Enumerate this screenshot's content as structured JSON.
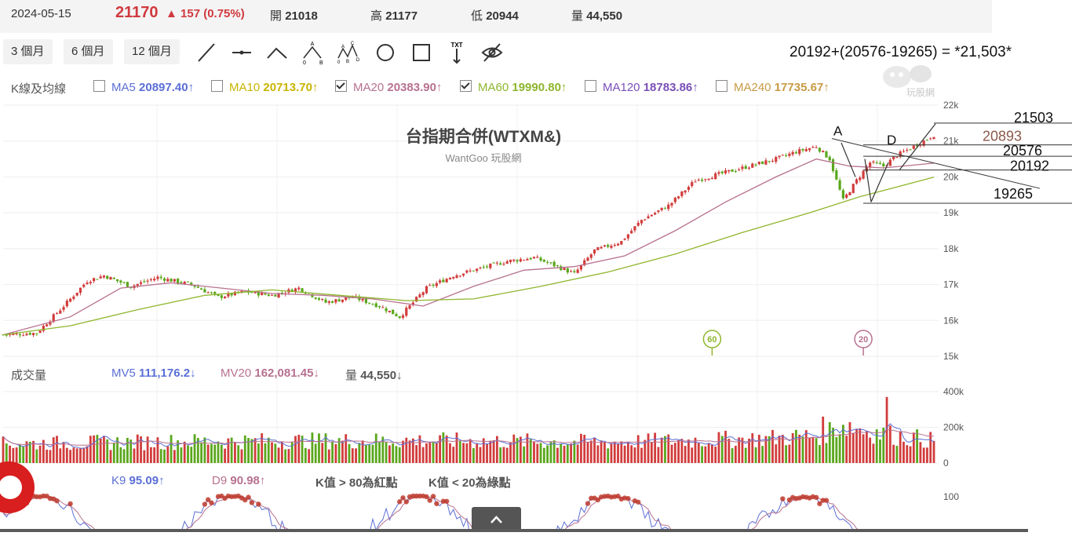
{
  "quote": {
    "date": "2024-05-15",
    "last": "21170",
    "change": "157 (0.75%)",
    "open_label": "開",
    "open": "21018",
    "high_label": "高",
    "high": "21177",
    "low_label": "低",
    "low": "20944",
    "vol_label": "量",
    "vol": "44,550"
  },
  "ranges": [
    "3 個月",
    "6 個月",
    "12 個月"
  ],
  "tools": [
    "line-tool-icon",
    "horizontal-line-icon",
    "polyline-icon",
    "abcd-pattern-icon",
    "xabcd-pattern-icon",
    "circle-tool-icon",
    "rectangle-tool-icon",
    "text-tool-icon",
    "hide-drawings-icon"
  ],
  "tool_texts": {
    "abc": "A",
    "abc_o": "0",
    "abc_b": "B",
    "xab_c": "C",
    "xab_a": "A",
    "xab_d": "D",
    "xab_b": "B",
    "xab_o": "0",
    "txt": "TXT"
  },
  "formula": "20192+(20576-19265) = *21,503*",
  "ma_section": "K線及均線",
  "ma": [
    {
      "label": "MA5",
      "value": "20897.40↑",
      "checked": false,
      "color": "#5b6fd6"
    },
    {
      "label": "MA10",
      "value": "20713.70↑",
      "checked": false,
      "color": "#c8b400"
    },
    {
      "label": "MA20",
      "value": "20383.90↑",
      "checked": true,
      "color": "#b7718f"
    },
    {
      "label": "MA60",
      "value": "19990.80↑",
      "checked": true,
      "color": "#8fb62d"
    },
    {
      "label": "MA120",
      "value": "18783.86↑",
      "checked": false,
      "color": "#7a4fb8"
    },
    {
      "label": "MA240",
      "value": "17735.67↑",
      "checked": false,
      "color": "#c79a44"
    }
  ],
  "logo_text": "玩股網",
  "chart_data": {
    "type": "candlestick",
    "title": "台指期合併(WTXM&)",
    "subtitle": "WantGoo 玩股網",
    "y_ticks": [
      "22k",
      "21k",
      "20k",
      "19k",
      "18k",
      "17k",
      "16k",
      "15k"
    ],
    "ylim": [
      15000,
      22000
    ],
    "trend": [
      {
        "x": 0,
        "y": 15600
      },
      {
        "x": 10,
        "y": 15650
      },
      {
        "x": 18,
        "y": 16400
      },
      {
        "x": 25,
        "y": 17100
      },
      {
        "x": 30,
        "y": 17250
      },
      {
        "x": 38,
        "y": 16950
      },
      {
        "x": 46,
        "y": 17200
      },
      {
        "x": 56,
        "y": 17000
      },
      {
        "x": 64,
        "y": 16650
      },
      {
        "x": 72,
        "y": 16800
      },
      {
        "x": 80,
        "y": 16700
      },
      {
        "x": 88,
        "y": 16900
      },
      {
        "x": 96,
        "y": 16500
      },
      {
        "x": 104,
        "y": 16650
      },
      {
        "x": 112,
        "y": 16400
      },
      {
        "x": 118,
        "y": 16100
      },
      {
        "x": 126,
        "y": 16900
      },
      {
        "x": 134,
        "y": 17250
      },
      {
        "x": 142,
        "y": 17450
      },
      {
        "x": 150,
        "y": 17650
      },
      {
        "x": 158,
        "y": 17750
      },
      {
        "x": 165,
        "y": 17500
      },
      {
        "x": 170,
        "y": 17300
      },
      {
        "x": 176,
        "y": 17950
      },
      {
        "x": 184,
        "y": 18200
      },
      {
        "x": 190,
        "y": 18800
      },
      {
        "x": 198,
        "y": 19200
      },
      {
        "x": 206,
        "y": 19900
      },
      {
        "x": 214,
        "y": 20100
      },
      {
        "x": 222,
        "y": 20300
      },
      {
        "x": 230,
        "y": 20500
      },
      {
        "x": 236,
        "y": 20700
      },
      {
        "x": 242,
        "y": 20850
      },
      {
        "x": 246,
        "y": 20500
      },
      {
        "x": 248,
        "y": 19900
      },
      {
        "x": 250,
        "y": 19350
      },
      {
        "x": 254,
        "y": 19900
      },
      {
        "x": 258,
        "y": 20400
      },
      {
        "x": 262,
        "y": 20300
      },
      {
        "x": 266,
        "y": 20600
      },
      {
        "x": 270,
        "y": 20800
      },
      {
        "x": 274,
        "y": 21000
      },
      {
        "x": 277,
        "y": 21170
      }
    ],
    "ma20": [
      {
        "x": 0,
        "y": 15600
      },
      {
        "x": 20,
        "y": 16100
      },
      {
        "x": 35,
        "y": 16900
      },
      {
        "x": 50,
        "y": 17050
      },
      {
        "x": 65,
        "y": 16900
      },
      {
        "x": 80,
        "y": 16750
      },
      {
        "x": 95,
        "y": 16700
      },
      {
        "x": 110,
        "y": 16600
      },
      {
        "x": 125,
        "y": 16400
      },
      {
        "x": 140,
        "y": 16950
      },
      {
        "x": 155,
        "y": 17400
      },
      {
        "x": 170,
        "y": 17500
      },
      {
        "x": 185,
        "y": 17800
      },
      {
        "x": 200,
        "y": 18500
      },
      {
        "x": 215,
        "y": 19300
      },
      {
        "x": 230,
        "y": 20000
      },
      {
        "x": 242,
        "y": 20500
      },
      {
        "x": 252,
        "y": 20300
      },
      {
        "x": 262,
        "y": 20250
      },
      {
        "x": 277,
        "y": 20384
      }
    ],
    "ma60": [
      {
        "x": 0,
        "y": 15600
      },
      {
        "x": 20,
        "y": 15850
      },
      {
        "x": 40,
        "y": 16300
      },
      {
        "x": 60,
        "y": 16700
      },
      {
        "x": 80,
        "y": 16850
      },
      {
        "x": 100,
        "y": 16700
      },
      {
        "x": 120,
        "y": 16550
      },
      {
        "x": 140,
        "y": 16600
      },
      {
        "x": 160,
        "y": 16950
      },
      {
        "x": 180,
        "y": 17350
      },
      {
        "x": 200,
        "y": 17850
      },
      {
        "x": 220,
        "y": 18450
      },
      {
        "x": 240,
        "y": 19000
      },
      {
        "x": 255,
        "y": 19450
      },
      {
        "x": 277,
        "y": 19991
      }
    ],
    "x_count": 278,
    "ma_markers": [
      {
        "label": "60",
        "x": 211
      },
      {
        "label": "20",
        "x": 256
      }
    ],
    "annotations": {
      "points": [
        {
          "label": "A",
          "x": 248,
          "y": 21050
        },
        {
          "label": "D",
          "x": 265,
          "y": 20820
        }
      ],
      "levels": [
        {
          "label": "21503",
          "y": 21500
        },
        {
          "label": "20893",
          "y": 20893,
          "color": "#8b5a4a"
        },
        {
          "label": "20576",
          "y": 20576
        },
        {
          "label": "20192",
          "y": 20192
        },
        {
          "label": "19265",
          "y": 19265
        }
      ]
    },
    "volume": {
      "label": "成交量",
      "mv5_label": "MV5",
      "mv5": "111,176.2↓",
      "mv20_label": "MV20",
      "mv20": "162,081.45↓",
      "vol_label": "量",
      "vol": "44,550↓",
      "y_ticks": [
        "400k",
        "200k",
        "0"
      ],
      "ylim": [
        0,
        400000
      ],
      "profile": [
        {
          "x": 0,
          "y": 120000
        },
        {
          "x": 60,
          "y": 135000
        },
        {
          "x": 120,
          "y": 140000
        },
        {
          "x": 180,
          "y": 130000
        },
        {
          "x": 225,
          "y": 150000
        },
        {
          "x": 242,
          "y": 170000
        },
        {
          "x": 250,
          "y": 240000
        },
        {
          "x": 262,
          "y": 180000
        },
        {
          "x": 277,
          "y": 140000
        }
      ]
    },
    "kd": {
      "k_label": "K9",
      "k": "95.09↑",
      "d_label": "D9",
      "d": "90.98↑",
      "note1": "K值 > 80為紅點",
      "note2": "K值 < 20為綠點",
      "y_ticks": [
        "100"
      ]
    }
  }
}
